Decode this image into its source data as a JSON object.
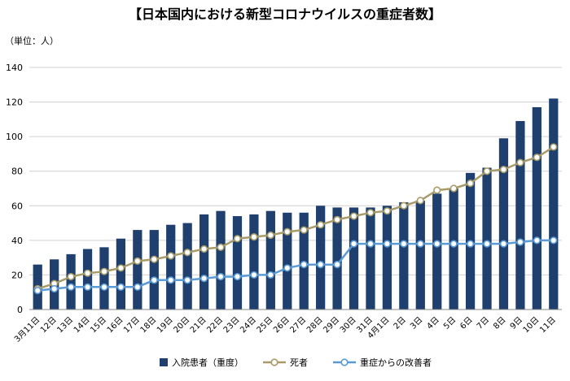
{
  "chart_data": {
    "type": "bar",
    "title": "【日本国内における新型コロナウイルスの重症者数】",
    "unit_label": "（単位：人）",
    "ylim": [
      0,
      140
    ],
    "y_ticks": [
      0,
      20,
      40,
      60,
      80,
      100,
      120,
      140
    ],
    "grid": true,
    "legend_position": "bottom",
    "categories": [
      "3月11日",
      "12日",
      "13日",
      "14日",
      "15日",
      "16日",
      "17日",
      "18日",
      "19日",
      "20日",
      "21日",
      "22日",
      "23日",
      "24日",
      "25日",
      "26日",
      "27日",
      "28日",
      "29日",
      "30日",
      "31日",
      "4月1日",
      "2日",
      "3日",
      "4日",
      "5日",
      "6日",
      "7日",
      "8日",
      "9日",
      "10日",
      "11日"
    ],
    "series": [
      {
        "name": "入院患者（重度）",
        "kind": "bar",
        "color": "#1f3f6e",
        "values": [
          26,
          29,
          32,
          35,
          36,
          41,
          46,
          46,
          49,
          50,
          55,
          57,
          54,
          55,
          57,
          56,
          56,
          60,
          59,
          59,
          59,
          60,
          62,
          63,
          67,
          70,
          79,
          82,
          99,
          109,
          117,
          122
        ]
      },
      {
        "name": "死者",
        "kind": "line",
        "color": "#a79b6a",
        "values": [
          12,
          15,
          19,
          21,
          22,
          24,
          28,
          29,
          31,
          33,
          35,
          36,
          41,
          42,
          43,
          45,
          46,
          49,
          52,
          54,
          56,
          57,
          60,
          63,
          69,
          70,
          73,
          80,
          81,
          85,
          88,
          94
        ]
      },
      {
        "name": "重症からの改善者",
        "kind": "line",
        "color": "#5b9bd5",
        "values": [
          11,
          12,
          13,
          13,
          13,
          13,
          13,
          17,
          17,
          17,
          18,
          19,
          19,
          20,
          20,
          24,
          26,
          26,
          26,
          38,
          38,
          38,
          38,
          38,
          38,
          38,
          38,
          38,
          38,
          39,
          40,
          40
        ]
      }
    ]
  }
}
